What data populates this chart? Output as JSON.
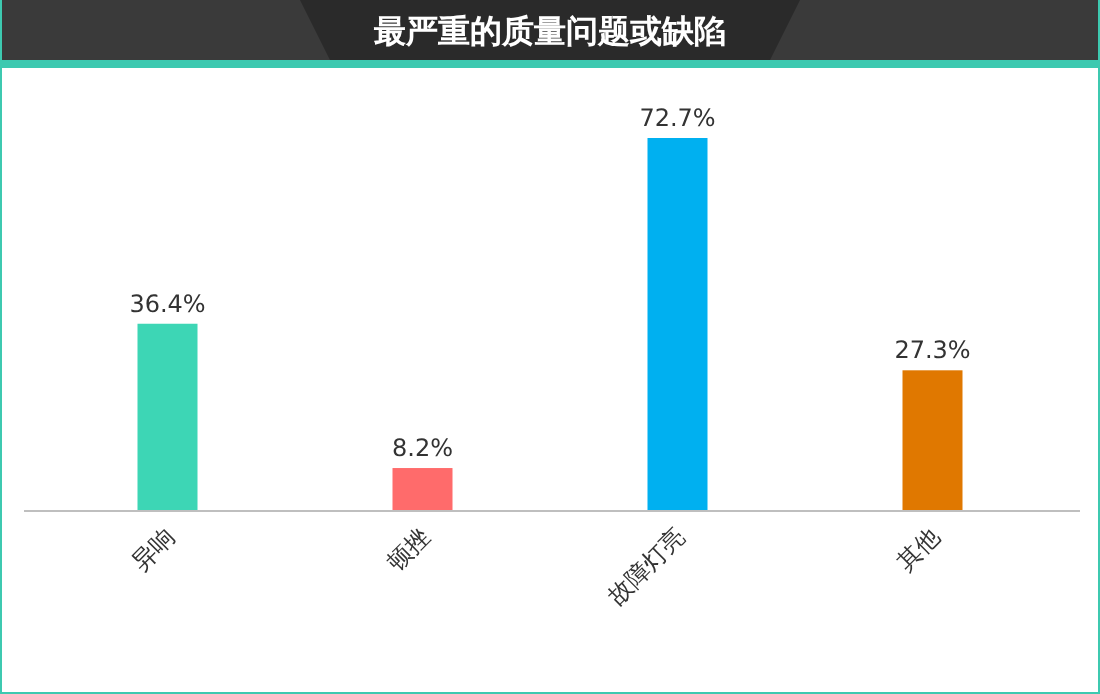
{
  "chart_data": {
    "type": "bar",
    "title": "最严重的质量问题或缺陷",
    "categories": [
      "异响",
      "顿挫",
      "故障灯亮",
      "其他"
    ],
    "values": [
      36.4,
      8.2,
      72.7,
      27.3
    ],
    "colors": [
      "#3dd6b5",
      "#ff6b6b",
      "#00b0f0",
      "#e07800"
    ],
    "value_labels": [
      "36.4%",
      "8.2%",
      "72.7%",
      "27.3%"
    ]
  }
}
